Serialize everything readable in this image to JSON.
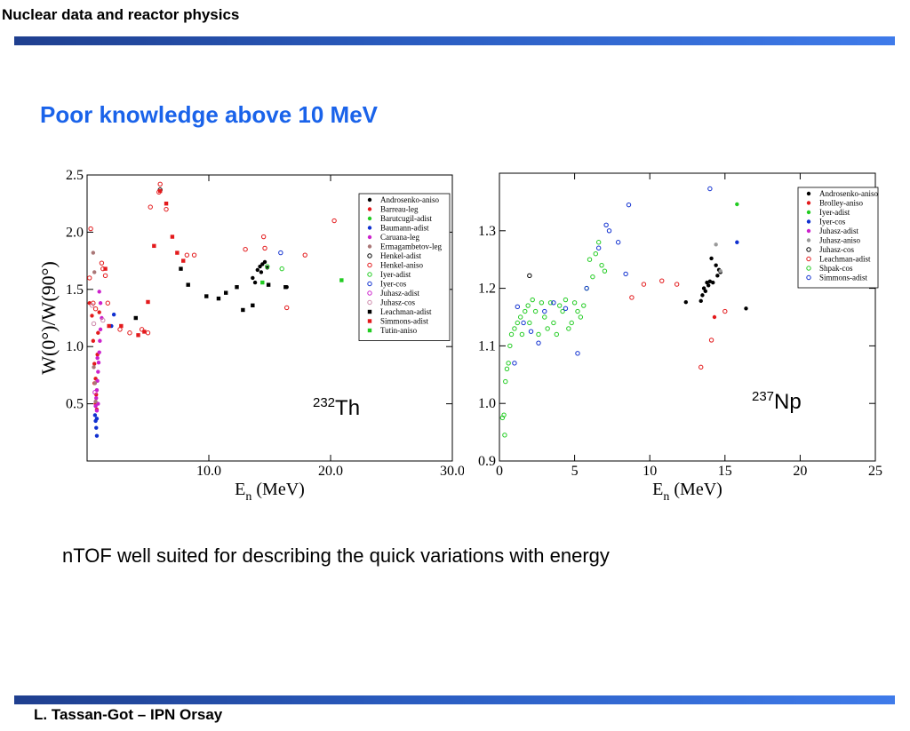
{
  "header": {
    "title": "Nuclear data and reactor physics"
  },
  "slide": {
    "title": "Poor knowledge above 10 MeV",
    "body": "nTOF well suited for describing the quick variations with energy"
  },
  "footer": {
    "author": "L. Tassan-Got – IPN Orsay"
  },
  "chart_data": [
    {
      "type": "scatter",
      "title": "",
      "annotation": {
        "mass": "232",
        "element": "Th"
      },
      "xlabel_main": "E",
      "xlabel_sub": "n",
      "xlabel_unit": " (MeV)",
      "ylabel": "W(0°)/W(90°)",
      "xlim": [
        0,
        30
      ],
      "ylim": [
        0,
        2.5
      ],
      "xticks": [
        10,
        20,
        30
      ],
      "xtick_labels": [
        "10.0",
        "20.0",
        "30.0"
      ],
      "yticks": [
        0.5,
        1.0,
        1.5,
        2.0,
        2.5
      ],
      "ytick_labels": [
        "0.5",
        "1.0",
        "1.5",
        "2.0",
        "2.5"
      ],
      "legend_position": "top-right",
      "series": [
        {
          "name": "Androsenko-aniso",
          "color": "#000000",
          "marker": "circle-filled",
          "points": [
            [
              13.6,
              1.6
            ],
            [
              13.8,
              1.56
            ],
            [
              14.0,
              1.67
            ],
            [
              14.2,
              1.7
            ],
            [
              14.4,
              1.72
            ],
            [
              14.6,
              1.74
            ],
            [
              14.3,
              1.65
            ],
            [
              14.8,
              1.69
            ],
            [
              16.4,
              1.52
            ]
          ]
        },
        {
          "name": "Barreau-leg",
          "color": "#e31a1c",
          "marker": "circle-filled",
          "points": [
            [
              0.2,
              1.38
            ],
            [
              0.4,
              1.27
            ],
            [
              0.5,
              1.05
            ],
            [
              0.6,
              0.85
            ],
            [
              0.7,
              0.72
            ],
            [
              0.75,
              0.58
            ],
            [
              0.8,
              0.45
            ],
            [
              0.85,
              0.93
            ],
            [
              0.9,
              1.12
            ],
            [
              1.0,
              1.3
            ],
            [
              0.6,
              0.68
            ],
            [
              0.7,
              0.5
            ]
          ]
        },
        {
          "name": "Barutcugil-adist",
          "color": "#22cc22",
          "marker": "circle-filled",
          "points": []
        },
        {
          "name": "Baumann-adist",
          "color": "#1030d0",
          "marker": "circle-filled",
          "points": [
            [
              0.7,
              0.35
            ],
            [
              0.75,
              0.29
            ],
            [
              0.8,
              0.22
            ],
            [
              0.65,
              0.4
            ],
            [
              2.0,
              1.18
            ],
            [
              2.2,
              1.28
            ],
            [
              0.8,
              0.37
            ]
          ]
        },
        {
          "name": "Caruana-leg",
          "color": "#cc22cc",
          "marker": "circle-filled",
          "points": [
            [
              0.7,
              0.48
            ],
            [
              0.75,
              0.55
            ],
            [
              0.8,
              0.62
            ],
            [
              0.85,
              0.7
            ],
            [
              0.9,
              0.78
            ],
            [
              0.95,
              0.86
            ],
            [
              1.0,
              0.95
            ],
            [
              1.05,
              1.05
            ],
            [
              1.1,
              1.15
            ],
            [
              1.2,
              1.25
            ],
            [
              1.1,
              1.38
            ],
            [
              1.0,
              1.48
            ],
            [
              0.9,
              0.5
            ],
            [
              0.8,
              0.44
            ],
            [
              0.85,
              0.9
            ]
          ]
        },
        {
          "name": "Ermagambetov-leg",
          "color": "#aa7777",
          "marker": "circle-filled",
          "points": [
            [
              0.5,
              1.82
            ],
            [
              0.6,
              1.65
            ],
            [
              0.55,
              0.82
            ],
            [
              0.65,
              0.68
            ],
            [
              0.7,
              0.52
            ]
          ]
        },
        {
          "name": "Henkel-adist",
          "color": "#000000",
          "marker": "circle-open",
          "points": [
            [
              6.0,
              2.37
            ]
          ]
        },
        {
          "name": "Henkel-aniso",
          "color": "#e31a1c",
          "marker": "circle-open",
          "points": [
            [
              0.2,
              1.6
            ],
            [
              0.3,
              2.03
            ],
            [
              0.5,
              1.38
            ],
            [
              0.7,
              1.33
            ],
            [
              1.2,
              1.73
            ],
            [
              1.3,
              1.68
            ],
            [
              1.5,
              1.62
            ],
            [
              1.7,
              1.38
            ],
            [
              2.7,
              1.15
            ],
            [
              3.5,
              1.12
            ],
            [
              4.5,
              1.15
            ],
            [
              5.0,
              1.12
            ],
            [
              5.2,
              2.22
            ],
            [
              5.9,
              2.35
            ],
            [
              6.0,
              2.42
            ],
            [
              6.5,
              2.2
            ],
            [
              8.2,
              1.8
            ],
            [
              8.8,
              1.8
            ],
            [
              13.0,
              1.85
            ],
            [
              14.5,
              1.96
            ],
            [
              14.6,
              1.86
            ],
            [
              16.4,
              1.34
            ],
            [
              17.9,
              1.8
            ],
            [
              20.3,
              2.1
            ]
          ]
        },
        {
          "name": "Iyer-adist",
          "color": "#22cc22",
          "marker": "circle-open",
          "points": [
            [
              14.8,
              1.7
            ],
            [
              16.0,
              1.68
            ]
          ]
        },
        {
          "name": "Iyer-cos",
          "color": "#1030d0",
          "marker": "circle-open",
          "points": [
            [
              15.9,
              1.82
            ]
          ]
        },
        {
          "name": "Juhasz-adist",
          "color": "#cc22cc",
          "marker": "circle-open",
          "points": [
            [
              0.65,
              0.6
            ]
          ]
        },
        {
          "name": "Juhasz-cos",
          "color": "#cc88aa",
          "marker": "circle-open",
          "points": [
            [
              0.4,
              1.36
            ],
            [
              0.55,
              1.2
            ],
            [
              1.3,
              1.23
            ]
          ]
        },
        {
          "name": "Leachman-adist",
          "color": "#000000",
          "marker": "square-filled",
          "points": [
            [
              4.0,
              1.25
            ],
            [
              7.7,
              1.68
            ],
            [
              8.3,
              1.54
            ],
            [
              9.8,
              1.44
            ],
            [
              10.8,
              1.42
            ],
            [
              11.4,
              1.47
            ],
            [
              12.3,
              1.52
            ],
            [
              12.8,
              1.32
            ],
            [
              13.6,
              1.36
            ],
            [
              14.9,
              1.54
            ],
            [
              16.3,
              1.52
            ]
          ]
        },
        {
          "name": "Simmons-adist",
          "color": "#e31a1c",
          "marker": "square-filled",
          "points": [
            [
              1.5,
              1.68
            ],
            [
              1.8,
              1.18
            ],
            [
              2.8,
              1.18
            ],
            [
              4.2,
              1.1
            ],
            [
              4.7,
              1.13
            ],
            [
              5.0,
              1.39
            ],
            [
              5.5,
              1.88
            ],
            [
              6.0,
              2.36
            ],
            [
              6.5,
              2.25
            ],
            [
              7.0,
              1.96
            ],
            [
              7.4,
              1.82
            ],
            [
              7.9,
              1.75
            ]
          ]
        },
        {
          "name": "Tutin-aniso",
          "color": "#22cc22",
          "marker": "square-filled",
          "points": [
            [
              14.4,
              1.56
            ],
            [
              20.9,
              1.58
            ]
          ]
        }
      ]
    },
    {
      "type": "scatter",
      "title": "",
      "annotation": {
        "mass": "237",
        "element": "Np"
      },
      "xlabel_main": "E",
      "xlabel_sub": "n",
      "xlabel_unit": " (MeV)",
      "ylabel": "",
      "xlim": [
        0,
        25
      ],
      "ylim": [
        0.9,
        1.4
      ],
      "xticks": [
        0,
        5,
        10,
        15,
        20,
        25
      ],
      "xtick_labels": [
        "0",
        "5",
        "10",
        "15",
        "20",
        "25"
      ],
      "yticks": [
        0.9,
        1.0,
        1.1,
        1.2,
        1.3
      ],
      "ytick_labels": [
        "0.9",
        "1.0",
        "1.1",
        "1.2",
        "1.3"
      ],
      "legend_position": "top-right",
      "series": [
        {
          "name": "Androsenko-aniso",
          "color": "#000000",
          "marker": "circle-filled",
          "points": [
            [
              12.4,
              1.176
            ],
            [
              13.4,
              1.178
            ],
            [
              13.5,
              1.188
            ],
            [
              13.6,
              1.2
            ],
            [
              13.7,
              1.195
            ],
            [
              13.8,
              1.21
            ],
            [
              13.9,
              1.205
            ],
            [
              14.0,
              1.212
            ],
            [
              14.1,
              1.252
            ],
            [
              14.2,
              1.21
            ],
            [
              14.4,
              1.24
            ],
            [
              14.5,
              1.222
            ],
            [
              14.6,
              1.232
            ],
            [
              14.7,
              1.228
            ],
            [
              16.4,
              1.165
            ]
          ]
        },
        {
          "name": "Brolley-aniso",
          "color": "#e31a1c",
          "marker": "circle-filled",
          "points": [
            [
              14.3,
              1.15
            ]
          ]
        },
        {
          "name": "Iyer-adist",
          "color": "#22cc22",
          "marker": "circle-filled",
          "points": [
            [
              15.8,
              1.346
            ]
          ]
        },
        {
          "name": "Iyer-cos",
          "color": "#1030d0",
          "marker": "circle-filled",
          "points": [
            [
              15.8,
              1.28
            ]
          ]
        },
        {
          "name": "Juhasz-adist",
          "color": "#cc22cc",
          "marker": "circle-filled",
          "points": []
        },
        {
          "name": "Juhasz-aniso",
          "color": "#999999",
          "marker": "circle-filled",
          "points": [
            [
              14.4,
              1.276
            ],
            [
              14.7,
              1.23
            ]
          ]
        },
        {
          "name": "Juhasz-cos",
          "color": "#000000",
          "marker": "circle-open",
          "points": [
            [
              2.0,
              1.222
            ]
          ]
        },
        {
          "name": "Leachman-adist",
          "color": "#e31a1c",
          "marker": "circle-open",
          "points": [
            [
              8.8,
              1.184
            ],
            [
              9.6,
              1.207
            ],
            [
              10.8,
              1.213
            ],
            [
              11.8,
              1.207
            ],
            [
              13.4,
              1.063
            ],
            [
              14.1,
              1.11
            ],
            [
              15.0,
              1.16
            ]
          ]
        },
        {
          "name": "Shpak-cos",
          "color": "#22cc22",
          "marker": "circle-open",
          "points": [
            [
              0.2,
              0.975
            ],
            [
              0.3,
              0.98
            ],
            [
              0.35,
              0.945
            ],
            [
              0.4,
              1.038
            ],
            [
              0.5,
              1.06
            ],
            [
              0.6,
              1.07
            ],
            [
              0.7,
              1.1
            ],
            [
              0.8,
              1.12
            ],
            [
              1.0,
              1.13
            ],
            [
              1.2,
              1.14
            ],
            [
              1.4,
              1.15
            ],
            [
              1.5,
              1.12
            ],
            [
              1.7,
              1.16
            ],
            [
              1.9,
              1.17
            ],
            [
              2.0,
              1.14
            ],
            [
              2.2,
              1.18
            ],
            [
              2.4,
              1.16
            ],
            [
              2.6,
              1.12
            ],
            [
              2.8,
              1.175
            ],
            [
              3.0,
              1.15
            ],
            [
              3.2,
              1.13
            ],
            [
              3.4,
              1.175
            ],
            [
              3.6,
              1.14
            ],
            [
              3.8,
              1.12
            ],
            [
              4.0,
              1.17
            ],
            [
              4.2,
              1.16
            ],
            [
              4.4,
              1.18
            ],
            [
              4.6,
              1.13
            ],
            [
              4.8,
              1.14
            ],
            [
              5.0,
              1.175
            ],
            [
              5.2,
              1.16
            ],
            [
              5.4,
              1.15
            ],
            [
              5.6,
              1.17
            ],
            [
              5.8,
              1.2
            ],
            [
              6.0,
              1.25
            ],
            [
              6.2,
              1.22
            ],
            [
              6.4,
              1.26
            ],
            [
              6.6,
              1.28
            ],
            [
              6.8,
              1.24
            ],
            [
              7.0,
              1.23
            ]
          ]
        },
        {
          "name": "Simmons-adist",
          "color": "#1030d0",
          "marker": "circle-open",
          "points": [
            [
              1.0,
              1.07
            ],
            [
              1.2,
              1.168
            ],
            [
              1.6,
              1.14
            ],
            [
              2.1,
              1.125
            ],
            [
              2.6,
              1.105
            ],
            [
              3.0,
              1.16
            ],
            [
              3.6,
              1.175
            ],
            [
              4.4,
              1.165
            ],
            [
              5.2,
              1.087
            ],
            [
              5.8,
              1.2
            ],
            [
              6.6,
              1.27
            ],
            [
              7.1,
              1.31
            ],
            [
              7.3,
              1.3
            ],
            [
              7.9,
              1.28
            ],
            [
              8.4,
              1.225
            ],
            [
              8.6,
              1.345
            ],
            [
              14.0,
              1.373
            ]
          ]
        }
      ]
    }
  ]
}
